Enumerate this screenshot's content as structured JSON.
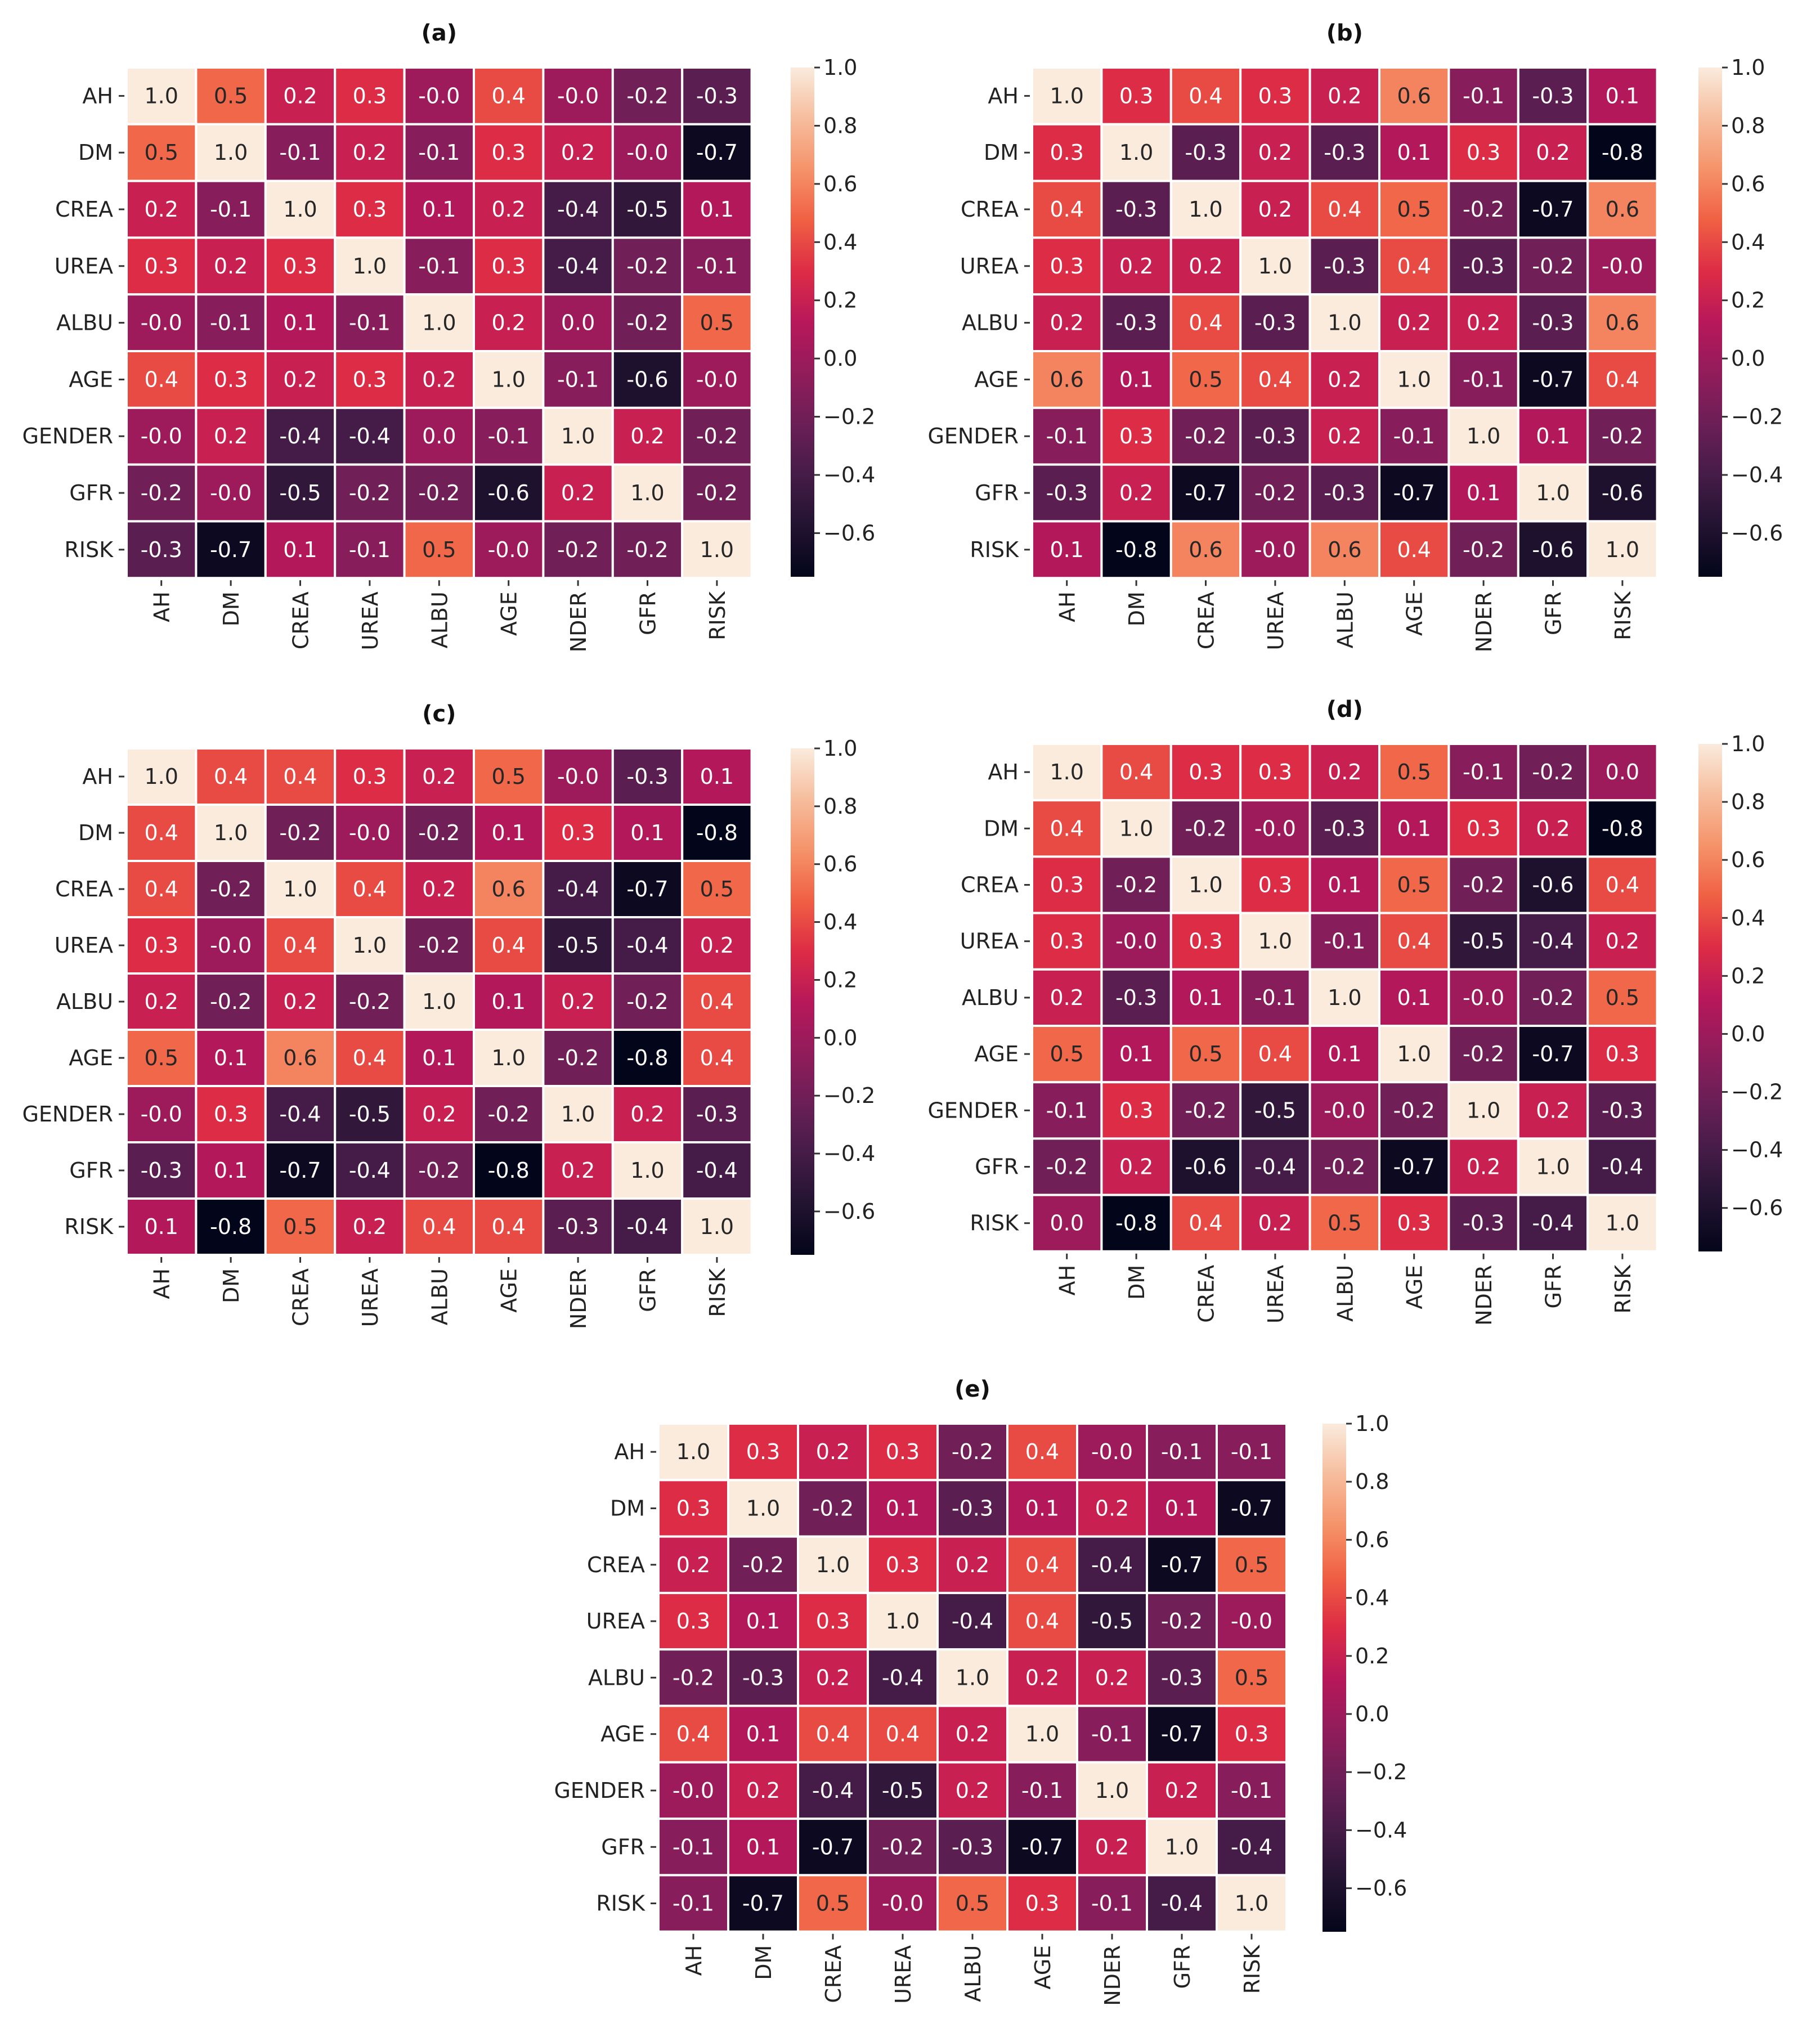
{
  "chart_data": [
    {
      "type": "heatmap",
      "title": "(a)",
      "row_labels": [
        "AH",
        "DM",
        "CREA",
        "UREA",
        "ALBU",
        "AGE",
        "GENDER",
        "GFR",
        "RISK"
      ],
      "col_labels": [
        "AH",
        "DM",
        "CREA",
        "UREA",
        "ALBU",
        "AGE",
        "NDER",
        "GFR",
        "RISK"
      ],
      "values": [
        [
          "1.0",
          "0.5",
          "0.2",
          "0.3",
          "-0.0",
          "0.4",
          "-0.0",
          "-0.2",
          "-0.3"
        ],
        [
          "0.5",
          "1.0",
          "-0.1",
          "0.2",
          "-0.1",
          "0.3",
          "0.2",
          "-0.0",
          "-0.7"
        ],
        [
          "0.2",
          "-0.1",
          "1.0",
          "0.3",
          "0.1",
          "0.2",
          "-0.4",
          "-0.5",
          "0.1"
        ],
        [
          "0.3",
          "0.2",
          "0.3",
          "1.0",
          "-0.1",
          "0.3",
          "-0.4",
          "-0.2",
          "-0.1"
        ],
        [
          "-0.0",
          "-0.1",
          "0.1",
          "-0.1",
          "1.0",
          "0.2",
          "0.0",
          "-0.2",
          "0.5"
        ],
        [
          "0.4",
          "0.3",
          "0.2",
          "0.3",
          "0.2",
          "1.0",
          "-0.1",
          "-0.6",
          "-0.0"
        ],
        [
          "-0.0",
          "0.2",
          "-0.4",
          "-0.4",
          "0.0",
          "-0.1",
          "1.0",
          "0.2",
          "-0.2"
        ],
        [
          "-0.2",
          "-0.0",
          "-0.5",
          "-0.2",
          "-0.2",
          "-0.6",
          "0.2",
          "1.0",
          "-0.2"
        ],
        [
          "-0.3",
          "-0.7",
          "0.1",
          "-0.1",
          "0.5",
          "-0.0",
          "-0.2",
          "-0.2",
          "1.0"
        ]
      ],
      "colorbar": {
        "vmin": -0.75,
        "vmax": 1.0,
        "ticks": [
          "1.0",
          "0.8",
          "0.6",
          "0.4",
          "0.2",
          "0.0",
          "−0.2",
          "−0.4",
          "−0.6"
        ]
      }
    },
    {
      "type": "heatmap",
      "title": "(b)",
      "row_labels": [
        "AH",
        "DM",
        "CREA",
        "UREA",
        "ALBU",
        "AGE",
        "GENDER",
        "GFR",
        "RISK"
      ],
      "col_labels": [
        "AH",
        "DM",
        "CREA",
        "UREA",
        "ALBU",
        "AGE",
        "NDER",
        "GFR",
        "RISK"
      ],
      "values": [
        [
          "1.0",
          "0.3",
          "0.4",
          "0.3",
          "0.2",
          "0.6",
          "-0.1",
          "-0.3",
          "0.1"
        ],
        [
          "0.3",
          "1.0",
          "-0.3",
          "0.2",
          "-0.3",
          "0.1",
          "0.3",
          "0.2",
          "-0.8"
        ],
        [
          "0.4",
          "-0.3",
          "1.0",
          "0.2",
          "0.4",
          "0.5",
          "-0.2",
          "-0.7",
          "0.6"
        ],
        [
          "0.3",
          "0.2",
          "0.2",
          "1.0",
          "-0.3",
          "0.4",
          "-0.3",
          "-0.2",
          "-0.0"
        ],
        [
          "0.2",
          "-0.3",
          "0.4",
          "-0.3",
          "1.0",
          "0.2",
          "0.2",
          "-0.3",
          "0.6"
        ],
        [
          "0.6",
          "0.1",
          "0.5",
          "0.4",
          "0.2",
          "1.0",
          "-0.1",
          "-0.7",
          "0.4"
        ],
        [
          "-0.1",
          "0.3",
          "-0.2",
          "-0.3",
          "0.2",
          "-0.1",
          "1.0",
          "0.1",
          "-0.2"
        ],
        [
          "-0.3",
          "0.2",
          "-0.7",
          "-0.2",
          "-0.3",
          "-0.7",
          "0.1",
          "1.0",
          "-0.6"
        ],
        [
          "0.1",
          "-0.8",
          "0.6",
          "-0.0",
          "0.6",
          "0.4",
          "-0.2",
          "-0.6",
          "1.0"
        ]
      ],
      "colorbar": {
        "vmin": -0.75,
        "vmax": 1.0,
        "ticks": [
          "1.0",
          "0.8",
          "0.6",
          "0.4",
          "0.2",
          "0.0",
          "−0.2",
          "−0.4",
          "−0.6"
        ]
      }
    },
    {
      "type": "heatmap",
      "title": "(c)",
      "row_labels": [
        "AH",
        "DM",
        "CREA",
        "UREA",
        "ALBU",
        "AGE",
        "GENDER",
        "GFR",
        "RISK"
      ],
      "col_labels": [
        "AH",
        "DM",
        "CREA",
        "UREA",
        "ALBU",
        "AGE",
        "NDER",
        "GFR",
        "RISK"
      ],
      "values": [
        [
          "1.0",
          "0.4",
          "0.4",
          "0.3",
          "0.2",
          "0.5",
          "-0.0",
          "-0.3",
          "0.1"
        ],
        [
          "0.4",
          "1.0",
          "-0.2",
          "-0.0",
          "-0.2",
          "0.1",
          "0.3",
          "0.1",
          "-0.8"
        ],
        [
          "0.4",
          "-0.2",
          "1.0",
          "0.4",
          "0.2",
          "0.6",
          "-0.4",
          "-0.7",
          "0.5"
        ],
        [
          "0.3",
          "-0.0",
          "0.4",
          "1.0",
          "-0.2",
          "0.4",
          "-0.5",
          "-0.4",
          "0.2"
        ],
        [
          "0.2",
          "-0.2",
          "0.2",
          "-0.2",
          "1.0",
          "0.1",
          "0.2",
          "-0.2",
          "0.4"
        ],
        [
          "0.5",
          "0.1",
          "0.6",
          "0.4",
          "0.1",
          "1.0",
          "-0.2",
          "-0.8",
          "0.4"
        ],
        [
          "-0.0",
          "0.3",
          "-0.4",
          "-0.5",
          "0.2",
          "-0.2",
          "1.0",
          "0.2",
          "-0.3"
        ],
        [
          "-0.3",
          "0.1",
          "-0.7",
          "-0.4",
          "-0.2",
          "-0.8",
          "0.2",
          "1.0",
          "-0.4"
        ],
        [
          "0.1",
          "-0.8",
          "0.5",
          "0.2",
          "0.4",
          "0.4",
          "-0.3",
          "-0.4",
          "1.0"
        ]
      ],
      "colorbar": {
        "vmin": -0.75,
        "vmax": 1.0,
        "ticks": [
          "1.0",
          "0.8",
          "0.6",
          "0.4",
          "0.2",
          "0.0",
          "−0.2",
          "−0.4",
          "−0.6"
        ]
      }
    },
    {
      "type": "heatmap",
      "title": "(d)",
      "row_labels": [
        "AH",
        "DM",
        "CREA",
        "UREA",
        "ALBU",
        "AGE",
        "GENDER",
        "GFR",
        "RISK"
      ],
      "col_labels": [
        "AH",
        "DM",
        "CREA",
        "UREA",
        "ALBU",
        "AGE",
        "NDER",
        "GFR",
        "RISK"
      ],
      "values": [
        [
          "1.0",
          "0.4",
          "0.3",
          "0.3",
          "0.2",
          "0.5",
          "-0.1",
          "-0.2",
          "0.0"
        ],
        [
          "0.4",
          "1.0",
          "-0.2",
          "-0.0",
          "-0.3",
          "0.1",
          "0.3",
          "0.2",
          "-0.8"
        ],
        [
          "0.3",
          "-0.2",
          "1.0",
          "0.3",
          "0.1",
          "0.5",
          "-0.2",
          "-0.6",
          "0.4"
        ],
        [
          "0.3",
          "-0.0",
          "0.3",
          "1.0",
          "-0.1",
          "0.4",
          "-0.5",
          "-0.4",
          "0.2"
        ],
        [
          "0.2",
          "-0.3",
          "0.1",
          "-0.1",
          "1.0",
          "0.1",
          "-0.0",
          "-0.2",
          "0.5"
        ],
        [
          "0.5",
          "0.1",
          "0.5",
          "0.4",
          "0.1",
          "1.0",
          "-0.2",
          "-0.7",
          "0.3"
        ],
        [
          "-0.1",
          "0.3",
          "-0.2",
          "-0.5",
          "-0.0",
          "-0.2",
          "1.0",
          "0.2",
          "-0.3"
        ],
        [
          "-0.2",
          "0.2",
          "-0.6",
          "-0.4",
          "-0.2",
          "-0.7",
          "0.2",
          "1.0",
          "-0.4"
        ],
        [
          "0.0",
          "-0.8",
          "0.4",
          "0.2",
          "0.5",
          "0.3",
          "-0.3",
          "-0.4",
          "1.0"
        ]
      ],
      "colorbar": {
        "vmin": -0.75,
        "vmax": 1.0,
        "ticks": [
          "1.0",
          "0.8",
          "0.6",
          "0.4",
          "0.2",
          "0.0",
          "−0.2",
          "−0.4",
          "−0.6"
        ]
      }
    },
    {
      "type": "heatmap",
      "title": "(e)",
      "row_labels": [
        "AH",
        "DM",
        "CREA",
        "UREA",
        "ALBU",
        "AGE",
        "GENDER",
        "GFR",
        "RISK"
      ],
      "col_labels": [
        "AH",
        "DM",
        "CREA",
        "UREA",
        "ALBU",
        "AGE",
        "NDER",
        "GFR",
        "RISK"
      ],
      "values": [
        [
          "1.0",
          "0.3",
          "0.2",
          "0.3",
          "-0.2",
          "0.4",
          "-0.0",
          "-0.1",
          "-0.1"
        ],
        [
          "0.3",
          "1.0",
          "-0.2",
          "0.1",
          "-0.3",
          "0.1",
          "0.2",
          "0.1",
          "-0.7"
        ],
        [
          "0.2",
          "-0.2",
          "1.0",
          "0.3",
          "0.2",
          "0.4",
          "-0.4",
          "-0.7",
          "0.5"
        ],
        [
          "0.3",
          "0.1",
          "0.3",
          "1.0",
          "-0.4",
          "0.4",
          "-0.5",
          "-0.2",
          "-0.0"
        ],
        [
          "-0.2",
          "-0.3",
          "0.2",
          "-0.4",
          "1.0",
          "0.2",
          "0.2",
          "-0.3",
          "0.5"
        ],
        [
          "0.4",
          "0.1",
          "0.4",
          "0.4",
          "0.2",
          "1.0",
          "-0.1",
          "-0.7",
          "0.3"
        ],
        [
          "-0.0",
          "0.2",
          "-0.4",
          "-0.5",
          "0.2",
          "-0.1",
          "1.0",
          "0.2",
          "-0.1"
        ],
        [
          "-0.1",
          "0.1",
          "-0.7",
          "-0.2",
          "-0.3",
          "-0.7",
          "0.2",
          "1.0",
          "-0.4"
        ],
        [
          "-0.1",
          "-0.7",
          "0.5",
          "-0.0",
          "0.5",
          "0.3",
          "-0.1",
          "-0.4",
          "1.0"
        ]
      ],
      "colorbar": {
        "vmin": -0.75,
        "vmax": 1.0,
        "ticks": [
          "1.0",
          "0.8",
          "0.6",
          "0.4",
          "0.2",
          "0.0",
          "−0.2",
          "−0.4",
          "−0.6"
        ]
      }
    }
  ]
}
